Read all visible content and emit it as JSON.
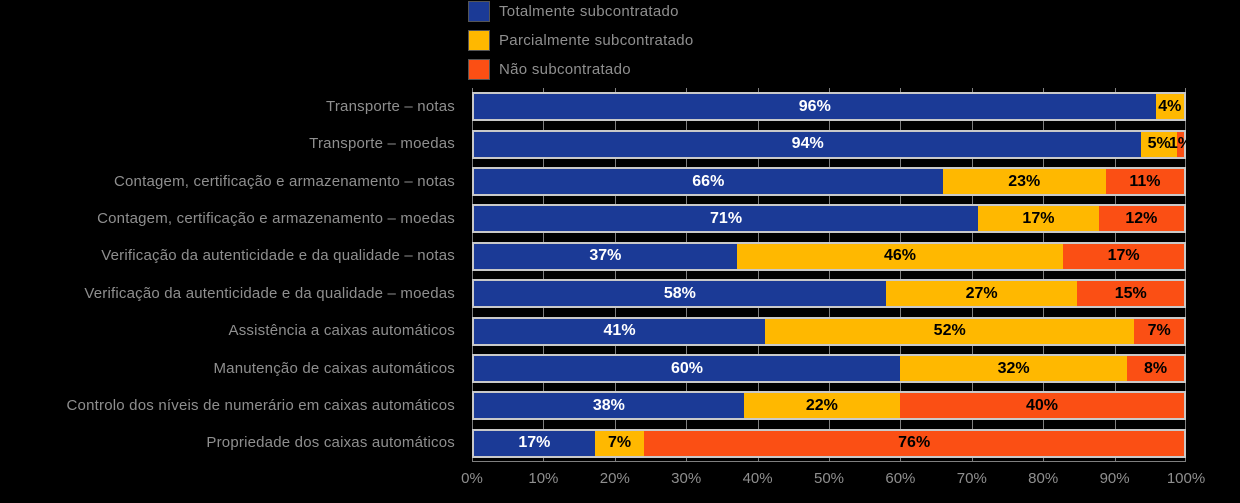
{
  "chart_data": {
    "type": "bar",
    "variant": "horizontal-stacked",
    "title": "",
    "background_color": "#000000",
    "label_color": "#8F8F8F",
    "gridline_color": "#7F7F7F",
    "bar_border_color": "#C9C9C9",
    "grid": "vertical-only",
    "legend_position": "top-left",
    "xlim": [
      0,
      100
    ],
    "value_label_suffix": "%",
    "x_ticks": [
      "0%",
      "10%",
      "20%",
      "30%",
      "40%",
      "50%",
      "60%",
      "70%",
      "80%",
      "90%",
      "100%"
    ],
    "categories": [
      "Transporte – notas",
      "Transporte – moedas",
      "Contagem, certificação e armazenamento – notas",
      "Contagem, certificação e armazenamento – moedas",
      "Verificação da autenticidade e da qualidade – notas",
      "Verificação da autenticidade e da qualidade – moedas",
      "Assistência a caixas automáticos",
      "Manutenção de caixas automáticos",
      "Controlo dos níveis de numerário em caixas automáticos",
      "Propriedade dos caixas automáticos"
    ],
    "series": [
      {
        "name": "Totalmente subcontratado",
        "color": "#1B3A96",
        "label_text_color": "#FFFFFF",
        "values": [
          96,
          94,
          66,
          71,
          37,
          58,
          41,
          60,
          38,
          17
        ]
      },
      {
        "name": "Parcialmente subcontratado",
        "color": "#FFB800",
        "label_text_color": "#000000",
        "values": [
          4,
          5,
          23,
          17,
          46,
          27,
          52,
          32,
          22,
          7
        ]
      },
      {
        "name": "Não subcontratado",
        "color": "#FB4F14",
        "label_text_color": "#000000",
        "values": [
          0,
          1,
          11,
          12,
          17,
          15,
          7,
          8,
          40,
          76
        ]
      }
    ]
  }
}
